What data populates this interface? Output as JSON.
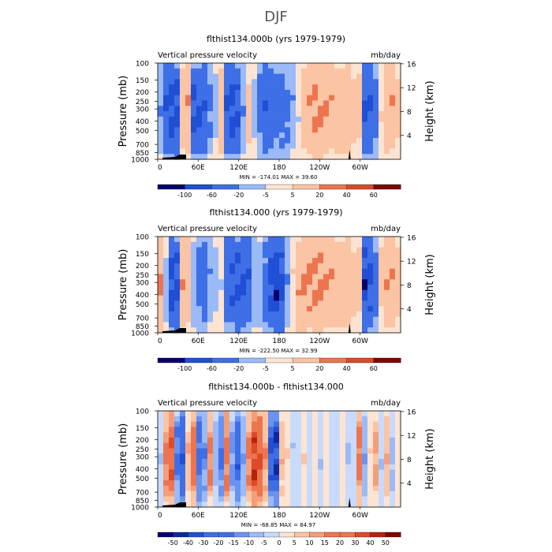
{
  "page_title": "DJF",
  "palettes": {
    "blue_red": [
      "#08006e",
      "#0a2a9e",
      "#1f4fd4",
      "#3e6fe6",
      "#6a93f0",
      "#9bbaf7",
      "#c9dbfc",
      "#fde4d2",
      "#fbc4a4",
      "#f59f7a",
      "#ec7550",
      "#dc4a2a",
      "#b5230f",
      "#7a0a02"
    ]
  },
  "chart_data": [
    {
      "id": "panel-1",
      "type": "heatmap",
      "title": "flthist134.000b (yrs 1979-1979)",
      "subtitle_left": "Vertical pressure velocity",
      "subtitle_right": "mb/day",
      "ylabel": "Pressure (mb)",
      "ylabel_right": "Height (km)",
      "y_ticks": [
        "100",
        "150",
        "200",
        "250",
        "300",
        "400",
        "500",
        "700",
        "850",
        "1000"
      ],
      "y_ticks_right": [
        "16",
        "12",
        "8",
        "4"
      ],
      "x_ticks": [
        "0",
        "60E",
        "120E",
        "180",
        "120W",
        "60W"
      ],
      "stats": "MIN = -174.01   MAX =  39.60",
      "colorbar_labels": [
        "-100",
        "-60",
        "-20",
        "-5",
        "5",
        "20",
        "40",
        "60"
      ],
      "columns": [
        -20,
        -70,
        -90,
        -85,
        10,
        20,
        -80,
        -75,
        -60,
        -30,
        -10,
        15,
        -70,
        -85,
        -70,
        -20,
        10,
        -10,
        -40,
        -60,
        -55,
        -45,
        -40,
        -35,
        -20,
        -5,
        12,
        20,
        25,
        24,
        22,
        20,
        18,
        16,
        15,
        12,
        10,
        -80,
        -70,
        -40,
        5,
        15,
        20,
        10
      ]
    },
    {
      "id": "panel-2",
      "type": "heatmap",
      "title": "flthist134.000 (yrs 1979-1979)",
      "subtitle_left": "Vertical pressure velocity",
      "subtitle_right": "mb/day",
      "ylabel": "Pressure (mb)",
      "ylabel_right": "Height (km)",
      "y_ticks": [
        "100",
        "150",
        "200",
        "250",
        "300",
        "400",
        "500",
        "700",
        "850",
        "1000"
      ],
      "y_ticks_right": [
        "16",
        "12",
        "8",
        "4"
      ],
      "x_ticks": [
        "0",
        "60E",
        "120E",
        "180",
        "120W",
        "60W"
      ],
      "stats": "MIN = -222.50   MAX =  32.99",
      "colorbar_labels": [
        "-100",
        "-60",
        "-20",
        "-5",
        "5",
        "20",
        "40",
        "60"
      ],
      "columns": [
        25,
        -10,
        -95,
        -80,
        20,
        15,
        -20,
        -35,
        -45,
        -20,
        -10,
        -5,
        -55,
        -70,
        -75,
        -80,
        -65,
        -20,
        -15,
        -40,
        -95,
        -110,
        -85,
        -20,
        5,
        20,
        25,
        26,
        27,
        25,
        23,
        21,
        20,
        18,
        16,
        12,
        10,
        -95,
        -80,
        -45,
        10,
        20,
        22,
        15
      ]
    },
    {
      "id": "panel-3",
      "type": "heatmap",
      "title": "flthist134.000b - flthist134.000",
      "subtitle_left": "Vertical pressure velocity",
      "subtitle_right": "mb/day",
      "ylabel": "Pressure (mb)",
      "ylabel_right": "Height (km)",
      "y_ticks": [
        "100",
        "150",
        "200",
        "250",
        "300",
        "400",
        "500",
        "700",
        "850",
        "1000"
      ],
      "y_ticks_right": [
        "16",
        "12",
        "8",
        "4"
      ],
      "x_ticks": [
        "0",
        "60E",
        "120E",
        "180",
        "120W",
        "60W"
      ],
      "stats": "MIN = -68.85   MAX =  84.97",
      "colorbar_labels": [
        "-50",
        "-40",
        "-30",
        "-20",
        "-15",
        "-10",
        "-5",
        "0",
        "5",
        "10",
        "15",
        "20",
        "30",
        "40",
        "50"
      ],
      "columns": [
        -5,
        20,
        35,
        -20,
        -30,
        10,
        30,
        -25,
        -15,
        20,
        -10,
        -20,
        25,
        -15,
        -30,
        -10,
        20,
        45,
        35,
        15,
        -35,
        -45,
        10,
        5,
        -5,
        0,
        5,
        -3,
        2,
        -5,
        4,
        0,
        -3,
        2,
        -6,
        0,
        25,
        -10,
        5,
        15,
        -5,
        10,
        -8,
        5
      ]
    }
  ]
}
